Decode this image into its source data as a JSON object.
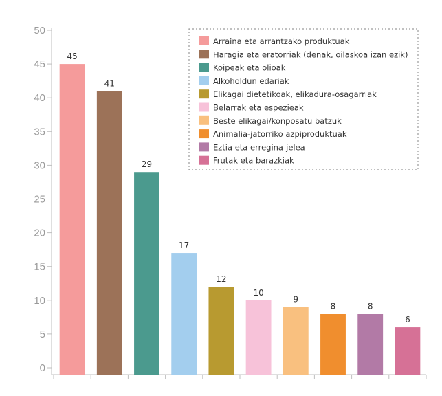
{
  "chart_data": {
    "type": "bar",
    "title": "",
    "xlabel": "",
    "ylabel": "",
    "ylim": [
      0,
      50
    ],
    "yticks": [
      0,
      5,
      10,
      15,
      20,
      25,
      30,
      35,
      40,
      45,
      50
    ],
    "grid": false,
    "legend_position": "top-right",
    "categories": [
      "Arraina eta arrantzako produktuak",
      "Haragia eta eratorriak (denak, oilaskoa izan ezik)",
      "Koipeak eta olioak",
      "Alkoholdun edariak",
      "Elikagai dietetikoak, elikadura-osagarriak",
      "Belarrak eta espezieak",
      "Beste elikagai/konposatu batzuk",
      "Animalia-jatorriko azpiproduktuak",
      "Eztia eta erregina-jelea",
      "Frutak eta barazkiak"
    ],
    "values": [
      45,
      41,
      29,
      17,
      12,
      10,
      9,
      8,
      8,
      6
    ],
    "colors": [
      "#f59b9b",
      "#9c7258",
      "#4b9a8e",
      "#a3ceee",
      "#b89a30",
      "#f7c2d9",
      "#f9c07f",
      "#f08e2e",
      "#b27aa6",
      "#d67196"
    ]
  }
}
